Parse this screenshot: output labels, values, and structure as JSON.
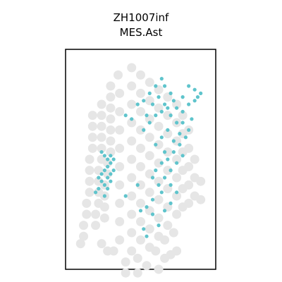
{
  "chart_data": {
    "type": "scatter",
    "title_lines": [
      "ZH1007inf",
      "MES.Ast"
    ],
    "xlabel": "",
    "ylabel": "",
    "axes": {
      "ticks": false,
      "grid": false,
      "frame": true
    },
    "colors": {
      "background_spot": "#e6e6e6",
      "highlight_spot": "#5fc4cc",
      "frame": "#000000"
    },
    "background_spots": [
      [
        0.3,
        0.2
      ],
      [
        0.3,
        0.26
      ],
      [
        0.3,
        0.32
      ],
      [
        0.3,
        0.38
      ],
      [
        0.3,
        0.44
      ],
      [
        0.3,
        0.5
      ],
      [
        0.3,
        0.56
      ],
      [
        0.28,
        0.62
      ],
      [
        0.28,
        0.68
      ],
      [
        0.26,
        0.74
      ],
      [
        0.26,
        0.8
      ],
      [
        0.26,
        0.86
      ],
      [
        0.26,
        0.92
      ],
      [
        0.24,
        0.3
      ],
      [
        0.24,
        0.36
      ],
      [
        0.24,
        0.42
      ],
      [
        0.24,
        0.48
      ],
      [
        0.24,
        0.54
      ],
      [
        0.24,
        0.6
      ],
      [
        0.22,
        0.66
      ],
      [
        0.22,
        0.72
      ],
      [
        0.22,
        0.78
      ],
      [
        0.22,
        0.84
      ],
      [
        0.2,
        0.9
      ],
      [
        0.2,
        0.96
      ],
      [
        0.18,
        0.36
      ],
      [
        0.18,
        0.42
      ],
      [
        0.18,
        0.48
      ],
      [
        0.18,
        0.54
      ],
      [
        0.16,
        0.6
      ],
      [
        0.16,
        0.66
      ],
      [
        0.16,
        0.72
      ],
      [
        0.16,
        0.78
      ],
      [
        0.14,
        0.84
      ],
      [
        0.14,
        0.9
      ],
      [
        0.12,
        0.96
      ],
      [
        0.12,
        1.02
      ],
      [
        0.1,
        1.06
      ],
      [
        0.35,
        0.14
      ],
      [
        0.36,
        0.24
      ],
      [
        0.36,
        0.34
      ],
      [
        0.36,
        0.44
      ],
      [
        0.36,
        0.54
      ],
      [
        0.36,
        0.64
      ],
      [
        0.36,
        0.74
      ],
      [
        0.36,
        0.84
      ],
      [
        0.36,
        0.94
      ],
      [
        0.36,
        1.04
      ],
      [
        0.32,
        1.1
      ],
      [
        0.28,
        1.1
      ],
      [
        0.24,
        1.06
      ],
      [
        0.44,
        0.1
      ],
      [
        0.44,
        0.2
      ],
      [
        0.44,
        0.3
      ],
      [
        0.44,
        0.4
      ],
      [
        0.44,
        0.5
      ],
      [
        0.44,
        0.6
      ],
      [
        0.44,
        0.7
      ],
      [
        0.44,
        0.8
      ],
      [
        0.44,
        0.9
      ],
      [
        0.44,
        1.0
      ],
      [
        0.44,
        1.1
      ],
      [
        0.4,
        1.16
      ],
      [
        0.4,
        1.22
      ],
      [
        0.5,
        0.14
      ],
      [
        0.5,
        0.24
      ],
      [
        0.5,
        0.34
      ],
      [
        0.5,
        0.44
      ],
      [
        0.5,
        0.54
      ],
      [
        0.5,
        0.64
      ],
      [
        0.5,
        0.74
      ],
      [
        0.5,
        0.84
      ],
      [
        0.5,
        0.94
      ],
      [
        0.5,
        1.04
      ],
      [
        0.48,
        1.14
      ],
      [
        0.48,
        1.22
      ],
      [
        0.56,
        0.18
      ],
      [
        0.56,
        0.28
      ],
      [
        0.56,
        0.38
      ],
      [
        0.56,
        0.48
      ],
      [
        0.56,
        0.58
      ],
      [
        0.56,
        0.68
      ],
      [
        0.56,
        0.78
      ],
      [
        0.56,
        0.88
      ],
      [
        0.56,
        0.98
      ],
      [
        0.56,
        1.08
      ],
      [
        0.54,
        1.18
      ],
      [
        0.62,
        0.22
      ],
      [
        0.62,
        0.32
      ],
      [
        0.62,
        0.42
      ],
      [
        0.62,
        0.52
      ],
      [
        0.62,
        0.62
      ],
      [
        0.62,
        0.72
      ],
      [
        0.62,
        0.82
      ],
      [
        0.62,
        0.92
      ],
      [
        0.62,
        1.02
      ],
      [
        0.6,
        1.1
      ],
      [
        0.68,
        0.26
      ],
      [
        0.68,
        0.36
      ],
      [
        0.68,
        0.46
      ],
      [
        0.68,
        0.56
      ],
      [
        0.68,
        0.66
      ],
      [
        0.68,
        0.76
      ],
      [
        0.68,
        0.86
      ],
      [
        0.68,
        0.96
      ],
      [
        0.66,
        1.04
      ],
      [
        0.74,
        0.3
      ],
      [
        0.74,
        0.4
      ],
      [
        0.74,
        0.5
      ],
      [
        0.74,
        0.6
      ],
      [
        0.74,
        0.7
      ],
      [
        0.74,
        0.8
      ],
      [
        0.74,
        0.9
      ],
      [
        0.72,
        1.0
      ],
      [
        0.78,
        0.36
      ],
      [
        0.78,
        0.46
      ],
      [
        0.78,
        0.56
      ],
      [
        0.78,
        0.66
      ],
      [
        0.78,
        0.76
      ],
      [
        0.78,
        0.86
      ],
      [
        0.82,
        0.44
      ],
      [
        0.82,
        0.54
      ],
      [
        0.82,
        0.64
      ],
      [
        0.82,
        0.74
      ],
      [
        0.82,
        0.84
      ],
      [
        0.86,
        0.6
      ],
      [
        0.86,
        0.7
      ],
      [
        0.86,
        0.8
      ],
      [
        0.9,
        0.72
      ],
      [
        0.9,
        0.82
      ],
      [
        0.66,
        1.14
      ],
      [
        0.7,
        1.12
      ],
      [
        0.74,
        1.1
      ],
      [
        0.62,
        1.2
      ]
    ],
    "highlight_spots": [
      [
        0.24,
        0.56
      ],
      [
        0.26,
        0.58
      ],
      [
        0.28,
        0.6
      ],
      [
        0.3,
        0.58
      ],
      [
        0.32,
        0.6
      ],
      [
        0.3,
        0.62
      ],
      [
        0.28,
        0.64
      ],
      [
        0.26,
        0.66
      ],
      [
        0.24,
        0.68
      ],
      [
        0.22,
        0.7
      ],
      [
        0.24,
        0.72
      ],
      [
        0.26,
        0.74
      ],
      [
        0.28,
        0.7
      ],
      [
        0.3,
        0.68
      ],
      [
        0.32,
        0.66
      ],
      [
        0.3,
        0.72
      ],
      [
        0.28,
        0.76
      ],
      [
        0.26,
        0.8
      ],
      [
        0.22,
        0.76
      ],
      [
        0.2,
        0.78
      ],
      [
        0.4,
        0.36
      ],
      [
        0.44,
        0.38
      ],
      [
        0.48,
        0.3
      ],
      [
        0.52,
        0.28
      ],
      [
        0.56,
        0.24
      ],
      [
        0.6,
        0.2
      ],
      [
        0.64,
        0.16
      ],
      [
        0.66,
        0.2
      ],
      [
        0.7,
        0.24
      ],
      [
        0.72,
        0.28
      ],
      [
        0.68,
        0.32
      ],
      [
        0.64,
        0.34
      ],
      [
        0.6,
        0.36
      ],
      [
        0.56,
        0.4
      ],
      [
        0.52,
        0.44
      ],
      [
        0.54,
        0.36
      ],
      [
        0.58,
        0.3
      ],
      [
        0.62,
        0.26
      ],
      [
        0.66,
        0.3
      ],
      [
        0.7,
        0.36
      ],
      [
        0.74,
        0.4
      ],
      [
        0.78,
        0.34
      ],
      [
        0.82,
        0.3
      ],
      [
        0.86,
        0.28
      ],
      [
        0.88,
        0.26
      ],
      [
        0.9,
        0.24
      ],
      [
        0.86,
        0.22
      ],
      [
        0.82,
        0.2
      ],
      [
        0.78,
        0.26
      ],
      [
        0.74,
        0.32
      ],
      [
        0.78,
        0.4
      ],
      [
        0.82,
        0.44
      ],
      [
        0.84,
        0.38
      ],
      [
        0.8,
        0.48
      ],
      [
        0.76,
        0.52
      ],
      [
        0.72,
        0.56
      ],
      [
        0.68,
        0.6
      ],
      [
        0.64,
        0.62
      ],
      [
        0.6,
        0.66
      ],
      [
        0.58,
        0.7
      ],
      [
        0.62,
        0.74
      ],
      [
        0.66,
        0.7
      ],
      [
        0.7,
        0.66
      ],
      [
        0.74,
        0.62
      ],
      [
        0.78,
        0.58
      ],
      [
        0.76,
        0.46
      ],
      [
        0.72,
        0.5
      ],
      [
        0.68,
        0.44
      ],
      [
        0.64,
        0.48
      ],
      [
        0.6,
        0.52
      ],
      [
        0.66,
        0.56
      ],
      [
        0.7,
        0.74
      ],
      [
        0.64,
        0.78
      ],
      [
        0.58,
        0.82
      ],
      [
        0.54,
        0.86
      ],
      [
        0.58,
        0.9
      ],
      [
        0.62,
        0.96
      ],
      [
        0.66,
        0.88
      ],
      [
        0.7,
        0.84
      ],
      [
        0.74,
        0.78
      ],
      [
        0.48,
        0.74
      ],
      [
        0.4,
        0.8
      ],
      [
        0.5,
        0.88
      ],
      [
        0.52,
        0.98
      ],
      [
        0.54,
        1.02
      ]
    ]
  }
}
